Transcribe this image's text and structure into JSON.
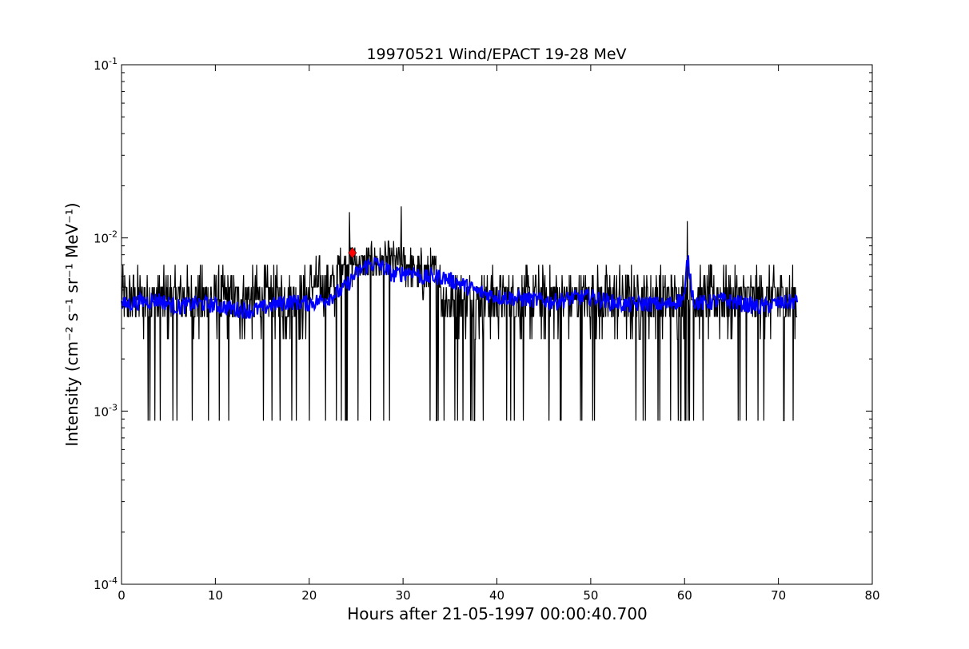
{
  "chart_data": {
    "type": "line",
    "title": "19970521 Wind/EPACT 19-28 MeV",
    "xlabel": "Hours after 21-05-1997 00:00:40.700",
    "ylabel": "Intensity (cm⁻² s⁻¹ sr⁻¹ MeV⁻¹)",
    "xlim": [
      0,
      80
    ],
    "ylim": [
      0.0001,
      0.1
    ],
    "yscale": "log",
    "grid": false,
    "x_ticks": [
      0,
      10,
      20,
      30,
      40,
      50,
      60,
      70,
      80
    ],
    "x_tick_labels": [
      "0",
      "10",
      "20",
      "30",
      "40",
      "50",
      "60",
      "70",
      "80"
    ],
    "y_ticks": [
      0.0001,
      0.001,
      0.01,
      0.1
    ],
    "y_tick_labels": [
      {
        "base": "10",
        "exp": "-4"
      },
      {
        "base": "10",
        "exp": "-3"
      },
      {
        "base": "10",
        "exp": "-2"
      },
      {
        "base": "10",
        "exp": "-1"
      }
    ],
    "series": [
      {
        "role": "raw",
        "color": "#000000",
        "x_start": 0.0,
        "x_end": 72.0,
        "levels": [
          0.00088,
          0.00175,
          0.0026,
          0.0035,
          0.0044,
          0.0052,
          0.0061,
          0.007,
          0.0079,
          0.0088,
          0.0096
        ],
        "segments": [
          {
            "x": [
              0,
              20
            ],
            "y": 0.0042
          },
          {
            "x": [
              20,
              23
            ],
            "y": 0.005
          },
          {
            "x": [
              23,
              31
            ],
            "y": 0.0066
          },
          {
            "x": [
              31,
              34
            ],
            "y": 0.0058
          },
          {
            "x": [
              34,
              72
            ],
            "y": 0.0044
          }
        ],
        "peaks": [
          {
            "x": 24.3,
            "y": 0.0141
          },
          {
            "x": 29.8,
            "y": 0.0152
          },
          {
            "x": 60.3,
            "y": 0.0125
          }
        ]
      },
      {
        "role": "smoothed",
        "color": "#0000ff",
        "x": [
          0,
          2,
          4,
          6,
          8,
          10,
          12,
          14,
          16,
          18,
          20,
          22,
          23.5,
          25,
          26,
          27,
          28,
          29,
          30,
          31,
          32,
          34,
          36,
          38,
          40,
          42,
          44,
          46,
          48,
          50,
          52,
          54,
          56,
          58,
          60,
          60.3,
          61,
          62,
          64,
          66,
          68,
          70,
          72
        ],
        "y": [
          0.0041,
          0.0043,
          0.0044,
          0.004,
          0.0042,
          0.0041,
          0.0039,
          0.0038,
          0.0041,
          0.0043,
          0.0042,
          0.0045,
          0.005,
          0.0062,
          0.0069,
          0.0072,
          0.0067,
          0.0061,
          0.0063,
          0.0065,
          0.0059,
          0.006,
          0.0055,
          0.0049,
          0.0046,
          0.0045,
          0.0044,
          0.0043,
          0.0045,
          0.0046,
          0.0043,
          0.0041,
          0.0042,
          0.0041,
          0.0045,
          0.0078,
          0.0043,
          0.0042,
          0.0044,
          0.0042,
          0.004,
          0.0042,
          0.0043
        ]
      }
    ],
    "marker": {
      "x": 24.6,
      "y": 0.0082,
      "shape": "diamond",
      "color": "#ff0000"
    }
  }
}
